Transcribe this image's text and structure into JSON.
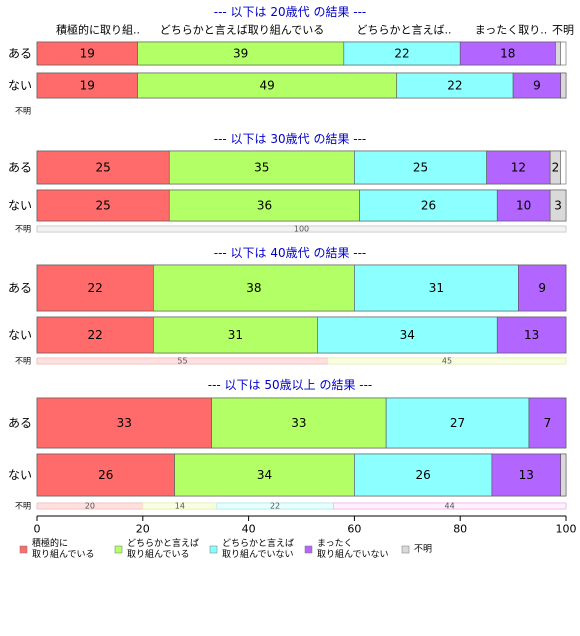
{
  "chart_data": {
    "type": "bar",
    "orientation": "horizontal",
    "stacked": true,
    "xlim": [
      0,
      100
    ],
    "x_ticks": [
      "0",
      "20",
      "40",
      "60",
      "80",
      "100"
    ],
    "column_headers": [
      "積極的に取り組..",
      "どちらかと言えば取り組んでいる",
      "どちらかと言えば..",
      "まったく取り..",
      "不明"
    ],
    "legend_position": "bottom",
    "legend": [
      {
        "lines": [
          "積極的に",
          "取り組んでいる"
        ],
        "color": "#ff6b6b"
      },
      {
        "lines": [
          "どちらかと言えば",
          "取り組んでいる"
        ],
        "color": "#b2ff66"
      },
      {
        "lines": [
          "どちらかと言えば",
          "取り組んでいない"
        ],
        "color": "#8cffff"
      },
      {
        "lines": [
          "まったく",
          "取り組んでいない"
        ],
        "color": "#b266ff"
      },
      {
        "lines": [
          "不明"
        ],
        "color": "#d9d9d9"
      }
    ],
    "panels": [
      {
        "title": "--- 以下は 20歳代 の結果 ---",
        "rows": [
          {
            "label": "ある",
            "values": [
              19,
              39,
              22,
              18,
              1
            ]
          },
          {
            "label": "ない",
            "values": [
              19,
              49,
              22,
              9,
              1
            ]
          }
        ],
        "unknown_label": "不明",
        "unknown_values": []
      },
      {
        "title": "--- 以下は 30歳代 の結果 ---",
        "rows": [
          {
            "label": "ある",
            "values": [
              25,
              35,
              25,
              12,
              2
            ]
          },
          {
            "label": "ない",
            "values": [
              25,
              36,
              26,
              10,
              3
            ]
          }
        ],
        "unknown_label": "不明",
        "unknown_values": [
          100
        ]
      },
      {
        "title": "--- 以下は 40歳代 の結果 ---",
        "rows": [
          {
            "label": "ある",
            "values": [
              22,
              38,
              31,
              9,
              0
            ]
          },
          {
            "label": "ない",
            "values": [
              22,
              31,
              34,
              13,
              0
            ]
          }
        ],
        "unknown_label": "不明",
        "unknown_values": [
          55,
          45
        ]
      },
      {
        "title": "--- 以下は 50歳以上 の結果 ---",
        "rows": [
          {
            "label": "ある",
            "values": [
              33,
              33,
              27,
              7,
              0
            ]
          },
          {
            "label": "ない",
            "values": [
              26,
              34,
              26,
              13,
              1
            ]
          }
        ],
        "unknown_label": "不明",
        "unknown_values": [
          20,
          14,
          22,
          44
        ]
      }
    ]
  }
}
